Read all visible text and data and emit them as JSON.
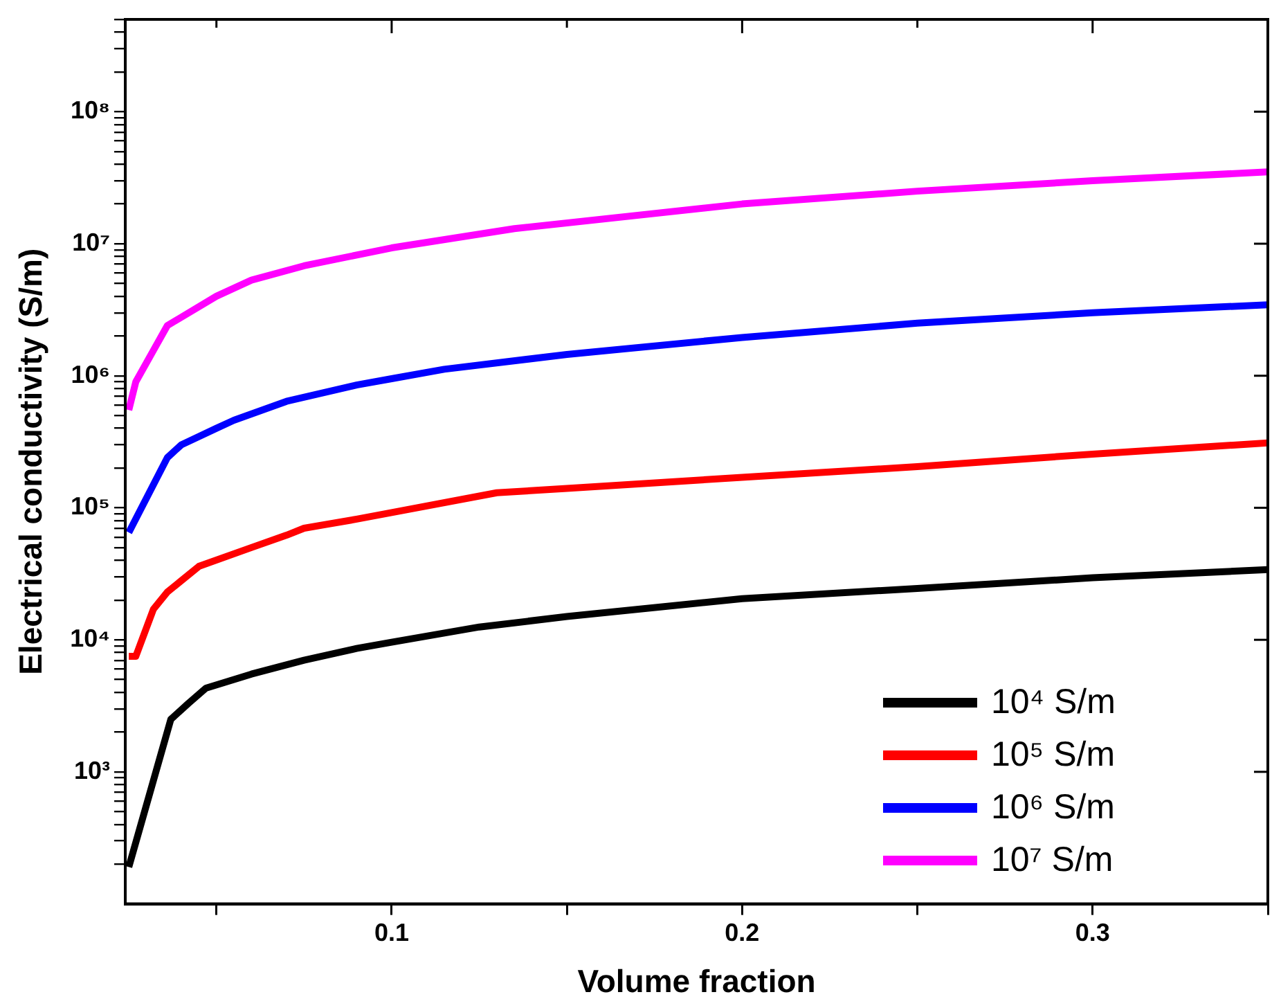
{
  "chart_data": {
    "type": "line",
    "xlabel": "Volume fraction",
    "ylabel": "Electrical conductivity (S/m)",
    "log": "y",
    "legend": "bottom right",
    "grid": false,
    "marker": "none",
    "line_style": "solid",
    "xlim": [
      0.024,
      0.35
    ],
    "xticks": [
      {
        "value": 0.05,
        "label": null
      },
      0.1,
      {
        "value": 0.15,
        "label": null
      },
      0.2,
      {
        "value": 0.25,
        "label": null
      },
      0.3,
      {
        "value": 0.35,
        "label": null
      }
    ],
    "ylim": [
      100,
      500000000
    ],
    "yticks": [
      {
        "value": 200,
        "label": null
      },
      {
        "value": 300,
        "label": null
      },
      {
        "value": 400,
        "label": null
      },
      {
        "value": 500,
        "label": null
      },
      {
        "value": 600,
        "label": null
      },
      {
        "value": 700,
        "label": null
      },
      {
        "value": 800,
        "label": null
      },
      {
        "value": 900,
        "label": null
      },
      {
        "value": 1000,
        "label": "10³"
      },
      {
        "value": 2000,
        "label": null
      },
      {
        "value": 3000,
        "label": null
      },
      {
        "value": 4000,
        "label": null
      },
      {
        "value": 5000,
        "label": null
      },
      {
        "value": 6000,
        "label": null
      },
      {
        "value": 7000,
        "label": null
      },
      {
        "value": 8000,
        "label": null
      },
      {
        "value": 9000,
        "label": null
      },
      {
        "value": 10000,
        "label": "10⁴"
      },
      {
        "value": 20000,
        "label": null
      },
      {
        "value": 30000,
        "label": null
      },
      {
        "value": 40000,
        "label": null
      },
      {
        "value": 50000,
        "label": null
      },
      {
        "value": 60000,
        "label": null
      },
      {
        "value": 70000,
        "label": null
      },
      {
        "value": 80000,
        "label": null
      },
      {
        "value": 90000,
        "label": null
      },
      {
        "value": 100000,
        "label": "10⁵"
      },
      {
        "value": 200000,
        "label": null
      },
      {
        "value": 300000,
        "label": null
      },
      {
        "value": 400000,
        "label": null
      },
      {
        "value": 500000,
        "label": null
      },
      {
        "value": 600000,
        "label": null
      },
      {
        "value": 700000,
        "label": null
      },
      {
        "value": 800000,
        "label": null
      },
      {
        "value": 900000,
        "label": null
      },
      {
        "value": 1000000,
        "label": "10⁶"
      },
      {
        "value": 2000000,
        "label": null
      },
      {
        "value": 3000000,
        "label": null
      },
      {
        "value": 4000000,
        "label": null
      },
      {
        "value": 5000000,
        "label": null
      },
      {
        "value": 6000000,
        "label": null
      },
      {
        "value": 7000000,
        "label": null
      },
      {
        "value": 8000000,
        "label": null
      },
      {
        "value": 9000000,
        "label": null
      },
      {
        "value": 10000000,
        "label": "10⁷"
      },
      {
        "value": 20000000,
        "label": null
      },
      {
        "value": 30000000,
        "label": null
      },
      {
        "value": 40000000,
        "label": null
      },
      {
        "value": 50000000,
        "label": null
      },
      {
        "value": 60000000,
        "label": null
      },
      {
        "value": 70000000,
        "label": null
      },
      {
        "value": 80000000,
        "label": null
      },
      {
        "value": 90000000,
        "label": null
      },
      {
        "value": 100000000,
        "label": "10⁸"
      },
      {
        "value": 200000000,
        "label": null
      },
      {
        "value": 300000000,
        "label": null
      },
      {
        "value": 400000000,
        "label": null
      },
      {
        "value": 500000000,
        "label": null
      }
    ],
    "series": [
      {
        "name": "10⁴ S/m",
        "color": "#000000",
        "x": [
          0.025,
          0.037,
          0.042,
          0.047,
          0.06,
          0.075,
          0.09,
          0.1,
          0.125,
          0.15,
          0.2,
          0.25,
          0.3,
          0.35
        ],
        "values": [
          190,
          2500,
          3300,
          4300,
          5500,
          7000,
          8600,
          9600,
          12500,
          15000,
          20500,
          24500,
          29500,
          34000
        ]
      },
      {
        "name": "10⁵ S/m",
        "color": "#ff0000",
        "x": [
          0.025,
          0.027,
          0.032,
          0.036,
          0.045,
          0.06,
          0.07,
          0.075,
          0.09,
          0.1,
          0.13,
          0.15,
          0.2,
          0.25,
          0.3,
          0.35
        ],
        "values": [
          7500,
          7500,
          17000,
          23000,
          36000,
          50000,
          62000,
          70000,
          82000,
          92000,
          130000,
          140000,
          170000,
          205000,
          255000,
          310000
        ]
      },
      {
        "name": "10⁶ S/m",
        "color": "#0000ff",
        "x": [
          0.025,
          0.036,
          0.04,
          0.05,
          0.055,
          0.07,
          0.09,
          0.1,
          0.115,
          0.15,
          0.2,
          0.25,
          0.3,
          0.35
        ],
        "values": [
          65000,
          240000,
          300000,
          400000,
          460000,
          640000,
          850000,
          950000,
          1120000,
          1450000,
          1950000,
          2500000,
          3000000,
          3450000
        ]
      },
      {
        "name": "10⁷ S/m",
        "color": "#ff00ff",
        "x": [
          0.025,
          0.027,
          0.036,
          0.05,
          0.06,
          0.075,
          0.1,
          0.135,
          0.2,
          0.25,
          0.3,
          0.35
        ],
        "values": [
          550000,
          900000,
          2400000,
          4000000,
          5300000,
          6800000,
          9300000,
          13000000,
          20000000,
          25000000,
          30000000,
          35000000
        ]
      }
    ]
  }
}
